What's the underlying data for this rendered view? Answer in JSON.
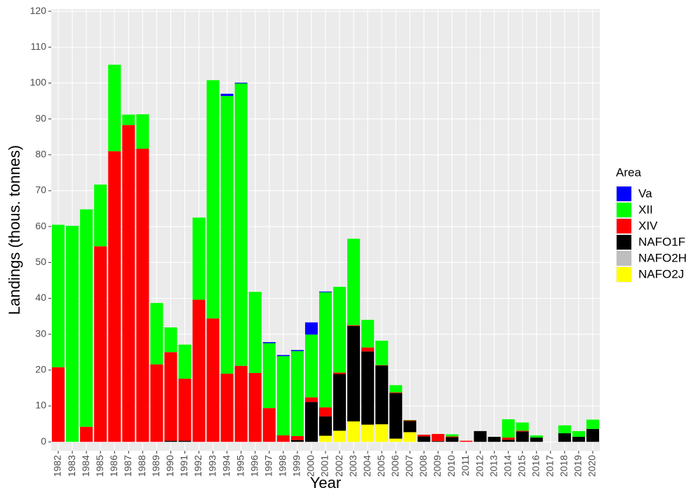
{
  "chart_data": {
    "type": "stacked_bar",
    "x_label": "Year",
    "y_label": "Landings (thous. tonnes)",
    "legend_title": "Area",
    "categories": [
      "1982",
      "1983",
      "1984",
      "1985",
      "1986",
      "1987",
      "1988",
      "1989",
      "1990",
      "1991",
      "1992",
      "1993",
      "1994",
      "1995",
      "1996",
      "1997",
      "1998",
      "1999",
      "2000",
      "2001",
      "2002",
      "2003",
      "2004",
      "2005",
      "2006",
      "2007",
      "2008",
      "2009",
      "2010",
      "2011",
      "2012",
      "2013",
      "2014",
      "2015",
      "2016",
      "2017",
      "2018",
      "2019",
      "2020"
    ],
    "series": [
      {
        "name": "Va",
        "color": "#0000ff",
        "values": [
          0,
          0,
          0,
          0,
          0,
          0,
          0,
          0,
          0,
          0,
          0,
          0,
          0.6,
          0.2,
          0,
          0.3,
          0.3,
          0.3,
          3.4,
          0.2,
          0,
          0,
          0,
          0,
          0,
          0,
          0,
          0,
          0,
          0,
          0,
          0,
          0,
          0,
          0,
          0,
          0,
          0,
          0
        ]
      },
      {
        "name": "XII",
        "color": "#00ff00",
        "values": [
          39.7,
          60.2,
          60.6,
          17.2,
          24.1,
          2.9,
          9.6,
          17.1,
          6.9,
          9.5,
          22.9,
          66.4,
          77.4,
          78.7,
          22.6,
          18.1,
          22.1,
          23.7,
          17.5,
          32.1,
          23.9,
          24.1,
          7.7,
          6.8,
          2.0,
          0.1,
          0,
          0,
          0.6,
          0,
          0,
          0,
          5.1,
          2.3,
          0.6,
          0,
          2.2,
          1.6,
          2.6
        ]
      },
      {
        "name": "XIV",
        "color": "#ff0000",
        "values": [
          20.8,
          0,
          4.2,
          54.5,
          81,
          88.3,
          81.7,
          21.6,
          24.7,
          17.3,
          39.6,
          34.4,
          19,
          21.2,
          19.2,
          9.4,
          1.8,
          1.1,
          1.3,
          2.5,
          0.4,
          0.2,
          1.1,
          0.1,
          0.2,
          0.2,
          0.5,
          2.0,
          0.2,
          0.3,
          0,
          0,
          0.6,
          0.2,
          0,
          0,
          0,
          0,
          0
        ]
      },
      {
        "name": "NAFO1F",
        "color": "#000000",
        "values": [
          0,
          0,
          0,
          0,
          0,
          0,
          0,
          0,
          0.3,
          0.3,
          0,
          0,
          0,
          0,
          0,
          0,
          0,
          0.5,
          11.1,
          5.4,
          15.8,
          26.6,
          20.4,
          16.4,
          12.7,
          3.1,
          1.5,
          0.2,
          1.3,
          0,
          3.0,
          1.4,
          0.6,
          2.9,
          1.2,
          0,
          2.4,
          1.4,
          3.6
        ]
      },
      {
        "name": "NAFO2H",
        "color": "#bebebe",
        "values": [
          0,
          0,
          0,
          0,
          0,
          0,
          0,
          0,
          0,
          0,
          0,
          0,
          0,
          0,
          0,
          0,
          0,
          0,
          0,
          0,
          0,
          0,
          0,
          0,
          0,
          0,
          0,
          0,
          0,
          0,
          0,
          0,
          0,
          0,
          0,
          0,
          0,
          0,
          0
        ]
      },
      {
        "name": "NAFO2J",
        "color": "#ffff00",
        "values": [
          0,
          0,
          0,
          0,
          0,
          0,
          0,
          0,
          0,
          0,
          0,
          0,
          0,
          0,
          0,
          0,
          0,
          0,
          0,
          1.7,
          3.1,
          5.7,
          4.8,
          4.9,
          0.9,
          2.7,
          0,
          0,
          0,
          0,
          0,
          0,
          0,
          0,
          0,
          0,
          0,
          0,
          0
        ]
      }
    ],
    "ylim": [
      -2.5,
      120.6
    ],
    "yticks": [
      0,
      10,
      20,
      30,
      40,
      50,
      60,
      70,
      80,
      90,
      100,
      110,
      120
    ],
    "grid": true,
    "legend_position": "right"
  }
}
